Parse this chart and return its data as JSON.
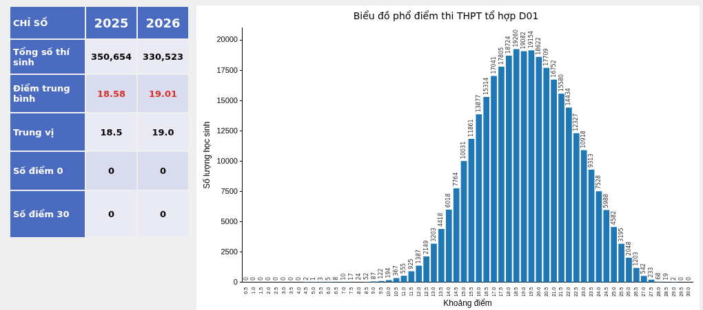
{
  "chart_data": [
    {
      "type": "other",
      "annotations": [
        "CHỈ SỐ",
        "2025",
        "2026",
        "Tổng số thí sinh",
        "350,654",
        "330,523",
        "Điểm trung bình",
        "18.58",
        "19.01",
        "Trung vị",
        "18.5",
        "19.0",
        "Số điểm 0",
        "0",
        "0",
        "Số điểm 30",
        "0",
        "0"
      ]
    },
    {
      "type": "bar",
      "title": "Biểu đồ phổ điểm thi THPT tổ hợp D01",
      "xlabel": "Khoảng điểm",
      "ylabel": "Số lượng học sinh",
      "categories": [
        "0.5",
        "1.0",
        "1.5",
        "2.0",
        "2.5",
        "3.0",
        "3.5",
        "4.0",
        "4.5",
        "5.0",
        "5.5",
        "6.0",
        "6.5",
        "7.0",
        "7.5",
        "8.0",
        "8.5",
        "9.0",
        "9.5",
        "10.0",
        "10.5",
        "11.0",
        "11.5",
        "12.0",
        "12.5",
        "13.0",
        "13.5",
        "14.0",
        "14.5",
        "15.0",
        "15.5",
        "16.0",
        "16.5",
        "17.0",
        "17.5",
        "18.0",
        "18.5",
        "19.0",
        "19.5",
        "20.0",
        "20.5",
        "21.0",
        "21.5",
        "22.0",
        "22.5",
        "23.0",
        "23.5",
        "24.0",
        "24.5",
        "25.0",
        "25.5",
        "26.0",
        "26.5",
        "27.0",
        "27.5",
        "28.0",
        "28.5",
        "29.0",
        "29.5",
        "30.0"
      ],
      "values": [
        0,
        0,
        0,
        0,
        0,
        0,
        0,
        0,
        2,
        1,
        3,
        5,
        8,
        10,
        17,
        24,
        52,
        87,
        122,
        194,
        367,
        555,
        925,
        1387,
        2149,
        3203,
        4418,
        6018,
        7764,
        10031,
        11861,
        13877,
        15314,
        17041,
        17805,
        18724,
        19260,
        19082,
        19154,
        18622,
        17709,
        16752,
        15580,
        14434,
        12327,
        10918,
        9313,
        7528,
        5988,
        4582,
        3195,
        2048,
        1203,
        542,
        233,
        68,
        19,
        2,
        0,
        0
      ],
      "color": "#1f77b4",
      "ylim": [
        0,
        21000
      ],
      "yticks": [
        0,
        2500,
        5000,
        7500,
        10000,
        12500,
        15000,
        17500,
        20000
      ],
      "data_labels": true,
      "grid": false,
      "legend": false
    }
  ]
}
